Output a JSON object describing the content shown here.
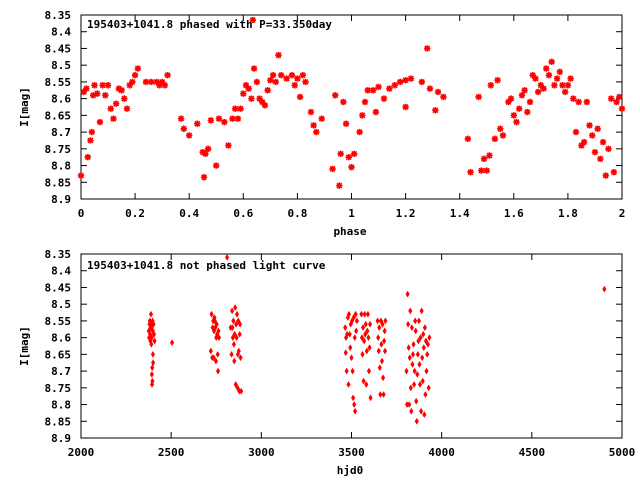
{
  "chart_data": [
    {
      "type": "scatter",
      "title": "195403+1041.8 phased with P=33.350day",
      "xlabel": "phase",
      "ylabel": "I[mag]",
      "xlim": [
        0,
        2
      ],
      "ylim": [
        8.35,
        8.9
      ],
      "y_inverted": true,
      "xticks": [
        "0",
        "0.2",
        "0.4",
        "0.6",
        "0.8",
        "1",
        "1.2",
        "1.4",
        "1.6",
        "1.8",
        "2"
      ],
      "xtick_values": [
        0,
        0.2,
        0.4,
        0.6,
        0.8,
        1.0,
        1.2,
        1.4,
        1.6,
        1.8,
        2.0
      ],
      "yticks": [
        "8.35",
        "8.4",
        "8.45",
        "8.5",
        "8.55",
        "8.6",
        "8.65",
        "8.7",
        "8.75",
        "8.8",
        "8.85",
        "8.9"
      ],
      "ytick_values": [
        8.35,
        8.4,
        8.45,
        8.5,
        8.55,
        8.6,
        8.65,
        8.7,
        8.75,
        8.8,
        8.85,
        8.9
      ],
      "marker": "star",
      "color": "#ff0000",
      "points": [
        [
          0.0,
          8.83
        ],
        [
          0.01,
          8.58
        ],
        [
          0.02,
          8.57
        ],
        [
          0.025,
          8.775
        ],
        [
          0.035,
          8.725
        ],
        [
          0.04,
          8.7
        ],
        [
          0.045,
          8.59
        ],
        [
          0.05,
          8.56
        ],
        [
          0.06,
          8.585
        ],
        [
          0.07,
          8.67
        ],
        [
          0.08,
          8.56
        ],
        [
          0.09,
          8.59
        ],
        [
          0.1,
          8.56
        ],
        [
          0.11,
          8.63
        ],
        [
          0.12,
          8.66
        ],
        [
          0.13,
          8.615
        ],
        [
          0.14,
          8.57
        ],
        [
          0.15,
          8.575
        ],
        [
          0.16,
          8.6
        ],
        [
          0.17,
          8.63
        ],
        [
          0.18,
          8.56
        ],
        [
          0.19,
          8.55
        ],
        [
          0.2,
          8.53
        ],
        [
          0.21,
          8.51
        ],
        [
          0.24,
          8.55
        ],
        [
          0.26,
          8.55
        ],
        [
          0.28,
          8.55
        ],
        [
          0.29,
          8.56
        ],
        [
          0.3,
          8.55
        ],
        [
          0.31,
          8.56
        ],
        [
          0.32,
          8.53
        ],
        [
          0.37,
          8.66
        ],
        [
          0.38,
          8.69
        ],
        [
          0.4,
          8.71
        ],
        [
          0.43,
          8.675
        ],
        [
          0.45,
          8.76
        ],
        [
          0.455,
          8.835
        ],
        [
          0.46,
          8.765
        ],
        [
          0.47,
          8.75
        ],
        [
          0.48,
          8.665
        ],
        [
          0.5,
          8.8
        ],
        [
          0.51,
          8.66
        ],
        [
          0.53,
          8.67
        ],
        [
          0.545,
          8.74
        ],
        [
          0.56,
          8.66
        ],
        [
          0.57,
          8.63
        ],
        [
          0.58,
          8.66
        ],
        [
          0.59,
          8.63
        ],
        [
          0.6,
          8.585
        ],
        [
          0.61,
          8.56
        ],
        [
          0.62,
          8.57
        ],
        [
          0.63,
          8.6
        ],
        [
          0.635,
          8.365
        ],
        [
          0.64,
          8.51
        ],
        [
          0.65,
          8.55
        ],
        [
          0.66,
          8.6
        ],
        [
          0.67,
          8.61
        ],
        [
          0.68,
          8.62
        ],
        [
          0.69,
          8.575
        ],
        [
          0.7,
          8.545
        ],
        [
          0.71,
          8.53
        ],
        [
          0.72,
          8.55
        ],
        [
          0.73,
          8.47
        ],
        [
          0.74,
          8.53
        ],
        [
          0.76,
          8.54
        ],
        [
          0.78,
          8.53
        ],
        [
          0.79,
          8.56
        ],
        [
          0.8,
          8.54
        ],
        [
          0.81,
          8.595
        ],
        [
          0.82,
          8.53
        ],
        [
          0.83,
          8.55
        ],
        [
          0.85,
          8.64
        ],
        [
          0.86,
          8.68
        ],
        [
          0.87,
          8.7
        ],
        [
          0.89,
          8.66
        ],
        [
          0.93,
          8.81
        ],
        [
          0.94,
          8.59
        ],
        [
          0.955,
          8.86
        ],
        [
          0.96,
          8.765
        ],
        [
          0.97,
          8.61
        ],
        [
          0.98,
          8.675
        ],
        [
          0.99,
          8.775
        ],
        [
          1.0,
          8.805
        ],
        [
          1.01,
          8.765
        ],
        [
          1.03,
          8.7
        ],
        [
          1.04,
          8.65
        ],
        [
          1.05,
          8.61
        ],
        [
          1.06,
          8.575
        ],
        [
          1.08,
          8.575
        ],
        [
          1.09,
          8.64
        ],
        [
          1.1,
          8.565
        ],
        [
          1.12,
          8.6
        ],
        [
          1.14,
          8.57
        ],
        [
          1.16,
          8.56
        ],
        [
          1.18,
          8.55
        ],
        [
          1.2,
          8.545
        ],
        [
          1.2,
          8.625
        ],
        [
          1.22,
          8.54
        ],
        [
          1.26,
          8.55
        ],
        [
          1.28,
          8.45
        ],
        [
          1.29,
          8.57
        ],
        [
          1.31,
          8.635
        ],
        [
          1.32,
          8.58
        ],
        [
          1.34,
          8.595
        ],
        [
          1.43,
          8.72
        ],
        [
          1.44,
          8.82
        ],
        [
          1.47,
          8.595
        ],
        [
          1.48,
          8.815
        ],
        [
          1.49,
          8.78
        ],
        [
          1.5,
          8.815
        ],
        [
          1.51,
          8.77
        ],
        [
          1.515,
          8.56
        ],
        [
          1.53,
          8.72
        ],
        [
          1.54,
          8.545
        ],
        [
          1.55,
          8.69
        ],
        [
          1.56,
          8.71
        ],
        [
          1.58,
          8.61
        ],
        [
          1.59,
          8.6
        ],
        [
          1.6,
          8.65
        ],
        [
          1.61,
          8.67
        ],
        [
          1.62,
          8.63
        ],
        [
          1.63,
          8.59
        ],
        [
          1.64,
          8.575
        ],
        [
          1.65,
          8.64
        ],
        [
          1.66,
          8.61
        ],
        [
          1.67,
          8.53
        ],
        [
          1.68,
          8.54
        ],
        [
          1.69,
          8.58
        ],
        [
          1.7,
          8.56
        ],
        [
          1.71,
          8.57
        ],
        [
          1.72,
          8.51
        ],
        [
          1.73,
          8.53
        ],
        [
          1.74,
          8.49
        ],
        [
          1.75,
          8.56
        ],
        [
          1.76,
          8.54
        ],
        [
          1.77,
          8.52
        ],
        [
          1.78,
          8.56
        ],
        [
          1.79,
          8.58
        ],
        [
          1.8,
          8.56
        ],
        [
          1.81,
          8.54
        ],
        [
          1.82,
          8.6
        ],
        [
          1.83,
          8.7
        ],
        [
          1.84,
          8.61
        ],
        [
          1.85,
          8.74
        ],
        [
          1.86,
          8.73
        ],
        [
          1.87,
          8.61
        ],
        [
          1.88,
          8.68
        ],
        [
          1.89,
          8.71
        ],
        [
          1.9,
          8.76
        ],
        [
          1.91,
          8.69
        ],
        [
          1.92,
          8.78
        ],
        [
          1.93,
          8.73
        ],
        [
          1.94,
          8.83
        ],
        [
          1.95,
          8.75
        ],
        [
          1.96,
          8.6
        ],
        [
          1.97,
          8.82
        ],
        [
          1.98,
          8.61
        ],
        [
          1.99,
          8.595
        ],
        [
          2.0,
          8.63
        ]
      ]
    },
    {
      "type": "scatter",
      "title": "195403+1041.8 not phased light curve",
      "xlabel": "hjd0",
      "ylabel": "I[mag]",
      "xlim": [
        2000,
        5000
      ],
      "ylim": [
        8.35,
        8.9
      ],
      "y_inverted": true,
      "xticks": [
        "2000",
        "2500",
        "3000",
        "3500",
        "4000",
        "4500",
        "5000"
      ],
      "xtick_values": [
        2000,
        2500,
        3000,
        3500,
        4000,
        4500,
        5000
      ],
      "yticks": [
        "8.35",
        "8.4",
        "8.45",
        "8.5",
        "8.55",
        "8.6",
        "8.65",
        "8.7",
        "8.75",
        "8.8",
        "8.85",
        "8.9"
      ],
      "ytick_values": [
        8.35,
        8.4,
        8.45,
        8.5,
        8.55,
        8.6,
        8.65,
        8.7,
        8.75,
        8.8,
        8.85,
        8.9
      ],
      "marker": "diamond",
      "color": "#ff0000",
      "points": [
        [
          2376,
          8.58
        ],
        [
          2378,
          8.6
        ],
        [
          2380,
          8.56
        ],
        [
          2382,
          8.55
        ],
        [
          2383,
          8.59
        ],
        [
          2385,
          8.61
        ],
        [
          2386,
          8.57
        ],
        [
          2388,
          8.53
        ],
        [
          2389,
          8.56
        ],
        [
          2390,
          8.62
        ],
        [
          2391,
          8.57
        ],
        [
          2392,
          8.6
        ],
        [
          2393,
          8.71
        ],
        [
          2394,
          8.74
        ],
        [
          2395,
          8.69
        ],
        [
          2396,
          8.73
        ],
        [
          2397,
          8.55
        ],
        [
          2398,
          8.58
        ],
        [
          2399,
          8.65
        ],
        [
          2400,
          8.675
        ],
        [
          2402,
          8.56
        ],
        [
          2405,
          8.59
        ],
        [
          2408,
          8.61
        ],
        [
          2505,
          8.615
        ],
        [
          2720,
          8.64
        ],
        [
          2724,
          8.53
        ],
        [
          2728,
          8.66
        ],
        [
          2730,
          8.57
        ],
        [
          2733,
          8.55
        ],
        [
          2736,
          8.66
        ],
        [
          2738,
          8.58
        ],
        [
          2740,
          8.54
        ],
        [
          2742,
          8.55
        ],
        [
          2745,
          8.57
        ],
        [
          2748,
          8.67
        ],
        [
          2750,
          8.6
        ],
        [
          2752,
          8.56
        ],
        [
          2755,
          8.59
        ],
        [
          2758,
          8.65
        ],
        [
          2760,
          8.7
        ],
        [
          2762,
          8.58
        ],
        [
          2765,
          8.6
        ],
        [
          2810,
          8.36
        ],
        [
          2830,
          8.57
        ],
        [
          2835,
          8.65
        ],
        [
          2838,
          8.52
        ],
        [
          2840,
          8.57
        ],
        [
          2842,
          8.6
        ],
        [
          2845,
          8.55
        ],
        [
          2848,
          8.62
        ],
        [
          2850,
          8.67
        ],
        [
          2852,
          8.59
        ],
        [
          2855,
          8.51
        ],
        [
          2858,
          8.74
        ],
        [
          2860,
          8.56
        ],
        [
          2863,
          8.6
        ],
        [
          2865,
          8.53
        ],
        [
          2868,
          8.75
        ],
        [
          2870,
          8.65
        ],
        [
          2872,
          8.55
        ],
        [
          2875,
          8.64
        ],
        [
          2878,
          8.76
        ],
        [
          2880,
          8.59
        ],
        [
          2882,
          8.56
        ],
        [
          2885,
          8.66
        ],
        [
          2888,
          8.76
        ],
        [
          3465,
          8.57
        ],
        [
          3468,
          8.645
        ],
        [
          3470,
          8.6
        ],
        [
          3473,
          8.7
        ],
        [
          3476,
          8.59
        ],
        [
          3480,
          8.54
        ],
        [
          3483,
          8.74
        ],
        [
          3486,
          8.53
        ],
        [
          3490,
          8.59
        ],
        [
          3493,
          8.63
        ],
        [
          3496,
          8.56
        ],
        [
          3500,
          8.66
        ],
        [
          3503,
          8.55
        ],
        [
          3506,
          8.7
        ],
        [
          3509,
          8.78
        ],
        [
          3512,
          8.54
        ],
        [
          3515,
          8.8
        ],
        [
          3518,
          8.6
        ],
        [
          3520,
          8.82
        ],
        [
          3523,
          8.53
        ],
        [
          3526,
          8.58
        ],
        [
          3530,
          8.55
        ],
        [
          3555,
          8.53
        ],
        [
          3558,
          8.6
        ],
        [
          3561,
          8.65
        ],
        [
          3564,
          8.57
        ],
        [
          3567,
          8.73
        ],
        [
          3570,
          8.61
        ],
        [
          3573,
          8.53
        ],
        [
          3576,
          8.59
        ],
        [
          3579,
          8.56
        ],
        [
          3582,
          8.74
        ],
        [
          3585,
          8.64
        ],
        [
          3588,
          8.58
        ],
        [
          3591,
          8.53
        ],
        [
          3594,
          8.6
        ],
        [
          3597,
          8.7
        ],
        [
          3600,
          8.63
        ],
        [
          3603,
          8.56
        ],
        [
          3606,
          8.78
        ],
        [
          3645,
          8.55
        ],
        [
          3648,
          8.6
        ],
        [
          3651,
          8.64
        ],
        [
          3654,
          8.57
        ],
        [
          3657,
          8.69
        ],
        [
          3660,
          8.77
        ],
        [
          3663,
          8.55
        ],
        [
          3666,
          8.62
        ],
        [
          3669,
          8.67
        ],
        [
          3672,
          8.56
        ],
        [
          3675,
          8.72
        ],
        [
          3678,
          8.77
        ],
        [
          3681,
          8.61
        ],
        [
          3684,
          8.58
        ],
        [
          3686,
          8.64
        ],
        [
          3688,
          8.55
        ],
        [
          3805,
          8.7
        ],
        [
          3808,
          8.8
        ],
        [
          3811,
          8.47
        ],
        [
          3814,
          8.56
        ],
        [
          3817,
          8.63
        ],
        [
          3820,
          8.8
        ],
        [
          3823,
          8.66
        ],
        [
          3826,
          8.52
        ],
        [
          3829,
          8.75
        ],
        [
          3832,
          8.82
        ],
        [
          3835,
          8.57
        ],
        [
          3838,
          8.68
        ],
        [
          3841,
          8.65
        ],
        [
          3844,
          8.62
        ],
        [
          3847,
          8.74
        ],
        [
          3850,
          8.7
        ],
        [
          3853,
          8.55
        ],
        [
          3856,
          8.58
        ],
        [
          3859,
          8.79
        ],
        [
          3862,
          8.85
        ],
        [
          3865,
          8.71
        ],
        [
          3868,
          8.65
        ],
        [
          3871,
          8.61
        ],
        [
          3874,
          8.55
        ],
        [
          3877,
          8.68
        ],
        [
          3880,
          8.74
        ],
        [
          3883,
          8.6
        ],
        [
          3886,
          8.82
        ],
        [
          3889,
          8.52
        ],
        [
          3892,
          8.66
        ],
        [
          3895,
          8.73
        ],
        [
          3898,
          8.59
        ],
        [
          3901,
          8.63
        ],
        [
          3904,
          8.83
        ],
        [
          3907,
          8.57
        ],
        [
          3910,
          8.77
        ],
        [
          3913,
          8.61
        ],
        [
          3916,
          8.7
        ],
        [
          3920,
          8.65
        ],
        [
          3924,
          8.62
        ],
        [
          3928,
          8.75
        ],
        [
          3932,
          8.6
        ],
        [
          4902,
          8.455
        ]
      ]
    }
  ]
}
